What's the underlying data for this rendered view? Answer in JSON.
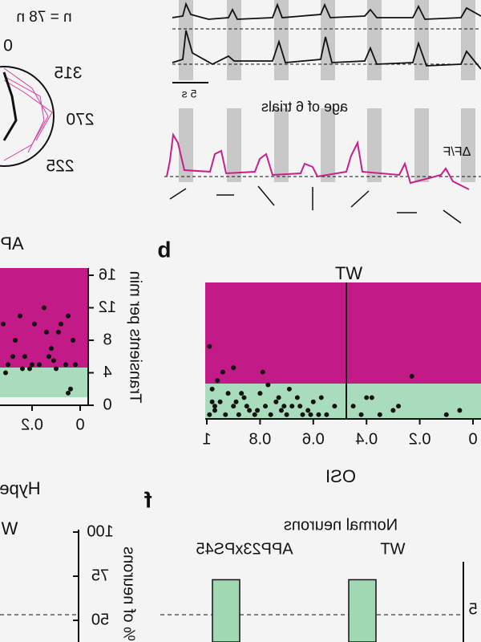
{
  "polar": {
    "n_label": "n = 78 n",
    "angles": [
      "0",
      "315",
      "270",
      "225"
    ]
  },
  "traces": {
    "scale_bar": "5 s",
    "caption": "age of 6 trials",
    "dff": "ΔF/F"
  },
  "panel_a": {
    "title": "AP",
    "ylabel": "Transients per min",
    "xlim": [
      0,
      0.35
    ],
    "ylim": [
      0,
      16
    ],
    "yticks": [
      0,
      4,
      8,
      12,
      16
    ],
    "xticks": [
      0,
      0.2
    ],
    "x": [
      0.02,
      0.03,
      0.05,
      0.06,
      0.08,
      0.1,
      0.12,
      0.14,
      0.15,
      0.17,
      0.19,
      0.21,
      0.23,
      0.25,
      0.27,
      0.3,
      0.32,
      0.05,
      0.09,
      0.11,
      0.13,
      0.2,
      0.24,
      0.28,
      0.31,
      0.04
    ],
    "y": [
      5,
      8,
      11,
      5,
      10,
      4.5,
      7,
      9,
      12,
      5,
      10,
      4.5,
      6,
      11,
      8,
      5,
      10,
      1.5,
      9,
      5.5,
      6,
      5,
      4.5,
      6,
      4,
      2
    ]
  },
  "panel_b": {
    "label": "b",
    "title": "WT",
    "xlabel": "OSI",
    "ylabel": "",
    "xlim": [
      1,
      0
    ],
    "ylim": [
      0,
      16
    ],
    "xticks": [
      1,
      0.8,
      0.6,
      0.4,
      0.2,
      0
    ],
    "x": [
      0.99,
      0.97,
      0.95,
      0.93,
      0.9,
      0.88,
      0.86,
      0.84,
      0.82,
      0.8,
      0.78,
      0.76,
      0.74,
      0.72,
      0.7,
      0.68,
      0.66,
      0.64,
      0.62,
      0.6,
      0.58,
      0.55,
      0.52,
      0.45,
      0.42,
      0.38,
      0.35,
      0.3,
      0.05,
      0.98,
      0.96,
      0.92,
      0.89,
      0.85,
      0.81,
      0.77,
      0.73,
      0.69,
      0.65,
      0.61,
      0.57,
      0.99,
      0.94,
      0.87,
      0.79,
      0.71,
      0.4,
      0.28,
      0.23,
      0.1,
      0.98,
      0.9,
      0.97
    ],
    "y": [
      0.5,
      1,
      2,
      0.5,
      1.5,
      0.5,
      2.5,
      1,
      0.5,
      3,
      1.5,
      0.5,
      2,
      1,
      0.5,
      1.5,
      2.5,
      0.5,
      1,
      2,
      0.5,
      0.5,
      1.5,
      1.5,
      0.5,
      2.5,
      0.5,
      1,
      1,
      3.5,
      4.5,
      3,
      2,
      1.5,
      1,
      4,
      2.5,
      3.5,
      1.5,
      0.5,
      2.5,
      8.5,
      5.5,
      3,
      5.5,
      1.5,
      2.5,
      1.5,
      5,
      0.5,
      2,
      6,
      1.5
    ]
  },
  "panel_e": {
    "title": "Hype",
    "subtitle": "W",
    "ylabel": "% of neurons",
    "ylim": [
      50,
      100
    ],
    "yticks": [
      50,
      75,
      100
    ]
  },
  "panel_f": {
    "label": "f",
    "title": "Normal neurons",
    "categories": [
      "APP23xPS45",
      "WT"
    ],
    "values": [
      73,
      73
    ],
    "ylim": [
      50,
      100
    ],
    "right_tick": "5"
  }
}
